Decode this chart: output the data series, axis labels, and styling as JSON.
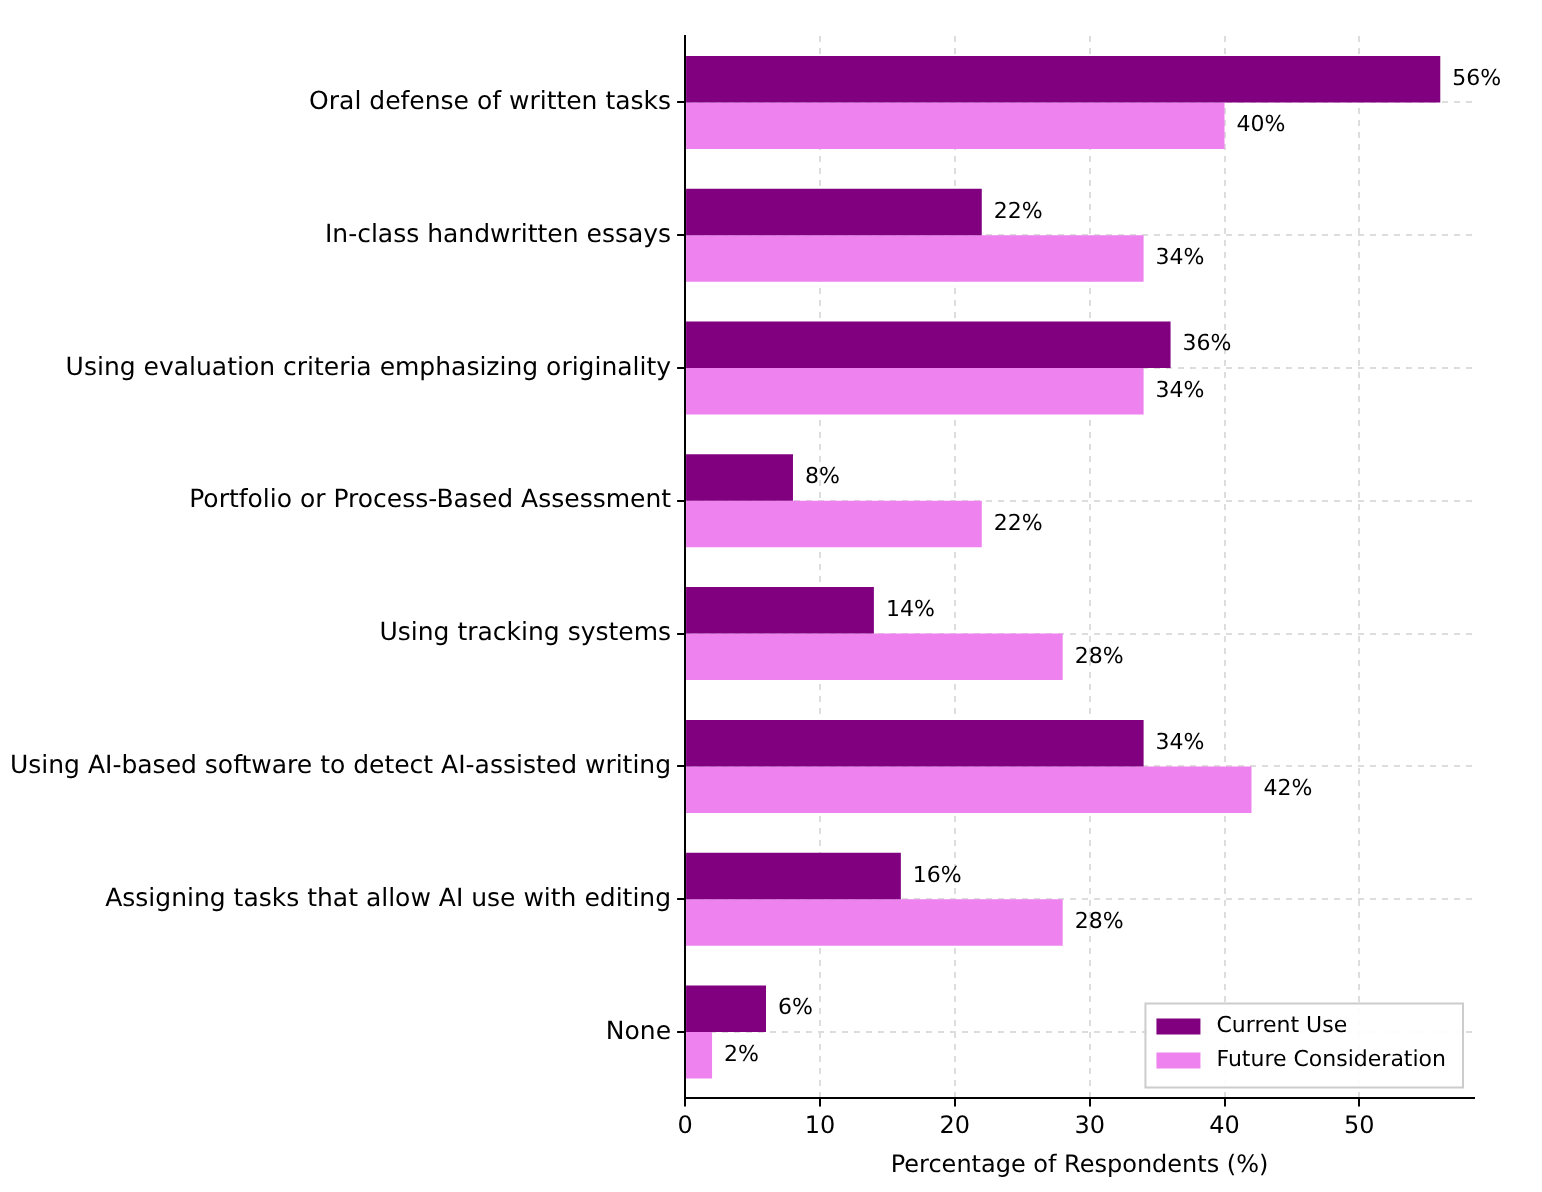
{
  "chart_data": {
    "type": "bar",
    "orientation": "horizontal",
    "xlabel": "Percentage of Respondents (%)",
    "categories": [
      "Oral defense of written tasks",
      "In-class handwritten essays",
      "Using evaluation criteria emphasizing originality",
      "Portfolio or Process-Based Assessment",
      "Using tracking systems",
      "Using AI-based software to detect AI-assisted writing",
      "Assigning tasks that allow AI use with editing",
      "None"
    ],
    "series": [
      {
        "name": "Current Use",
        "color": "#800080",
        "values": [
          56,
          22,
          36,
          8,
          14,
          34,
          16,
          6
        ],
        "value_labels": [
          "56%",
          "22%",
          "36%",
          "8%",
          "14%",
          "34%",
          "16%",
          "6%"
        ]
      },
      {
        "name": "Future Consideration",
        "color": "#ee82ee",
        "values": [
          40,
          34,
          34,
          22,
          28,
          42,
          28,
          2
        ],
        "value_labels": [
          "40%",
          "34%",
          "34%",
          "22%",
          "28%",
          "42%",
          "28%",
          "2%"
        ]
      }
    ],
    "xlim": [
      0,
      58.5
    ],
    "xticks": [
      0,
      10,
      20,
      30,
      40,
      50
    ],
    "grid": true,
    "legend": "bottom right"
  }
}
